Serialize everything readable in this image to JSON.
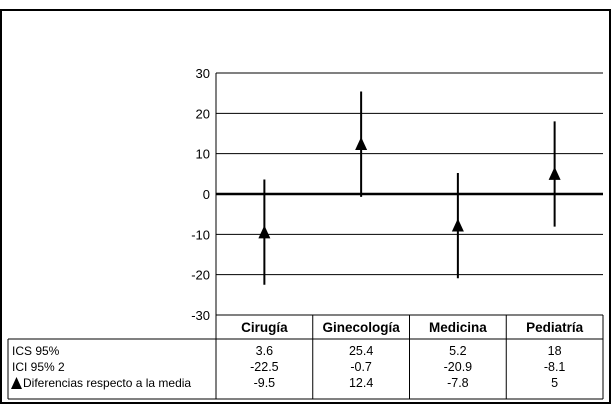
{
  "chart_data": {
    "type": "error-bar",
    "categories": [
      "Cirugía",
      "Ginecología",
      "Medicina",
      "Pediatría"
    ],
    "ylim": [
      -30,
      30
    ],
    "yticks": [
      30,
      20,
      10,
      0,
      -10,
      -20,
      -30
    ],
    "grid": true,
    "legend": "data-table-below",
    "series": [
      {
        "name": "ICS 95%",
        "values": [
          3.6,
          25.4,
          5.2,
          18
        ]
      },
      {
        "name": "ICI 95% 2",
        "values": [
          -22.5,
          -0.7,
          -20.9,
          -8.1
        ]
      },
      {
        "name": "Diferencias respecto a la media",
        "marker": "triangle",
        "values": [
          -9.5,
          12.4,
          -7.8,
          5
        ]
      }
    ],
    "table_values": [
      [
        "3.6",
        "25.4",
        "5.2",
        "18"
      ],
      [
        "-22.5",
        "-0.7",
        "-20.9",
        "-8.1"
      ],
      [
        "-9.5",
        "12.4",
        "-7.8",
        "5"
      ]
    ],
    "colors": {
      "line": "#000000",
      "background": "#ffffff"
    }
  }
}
